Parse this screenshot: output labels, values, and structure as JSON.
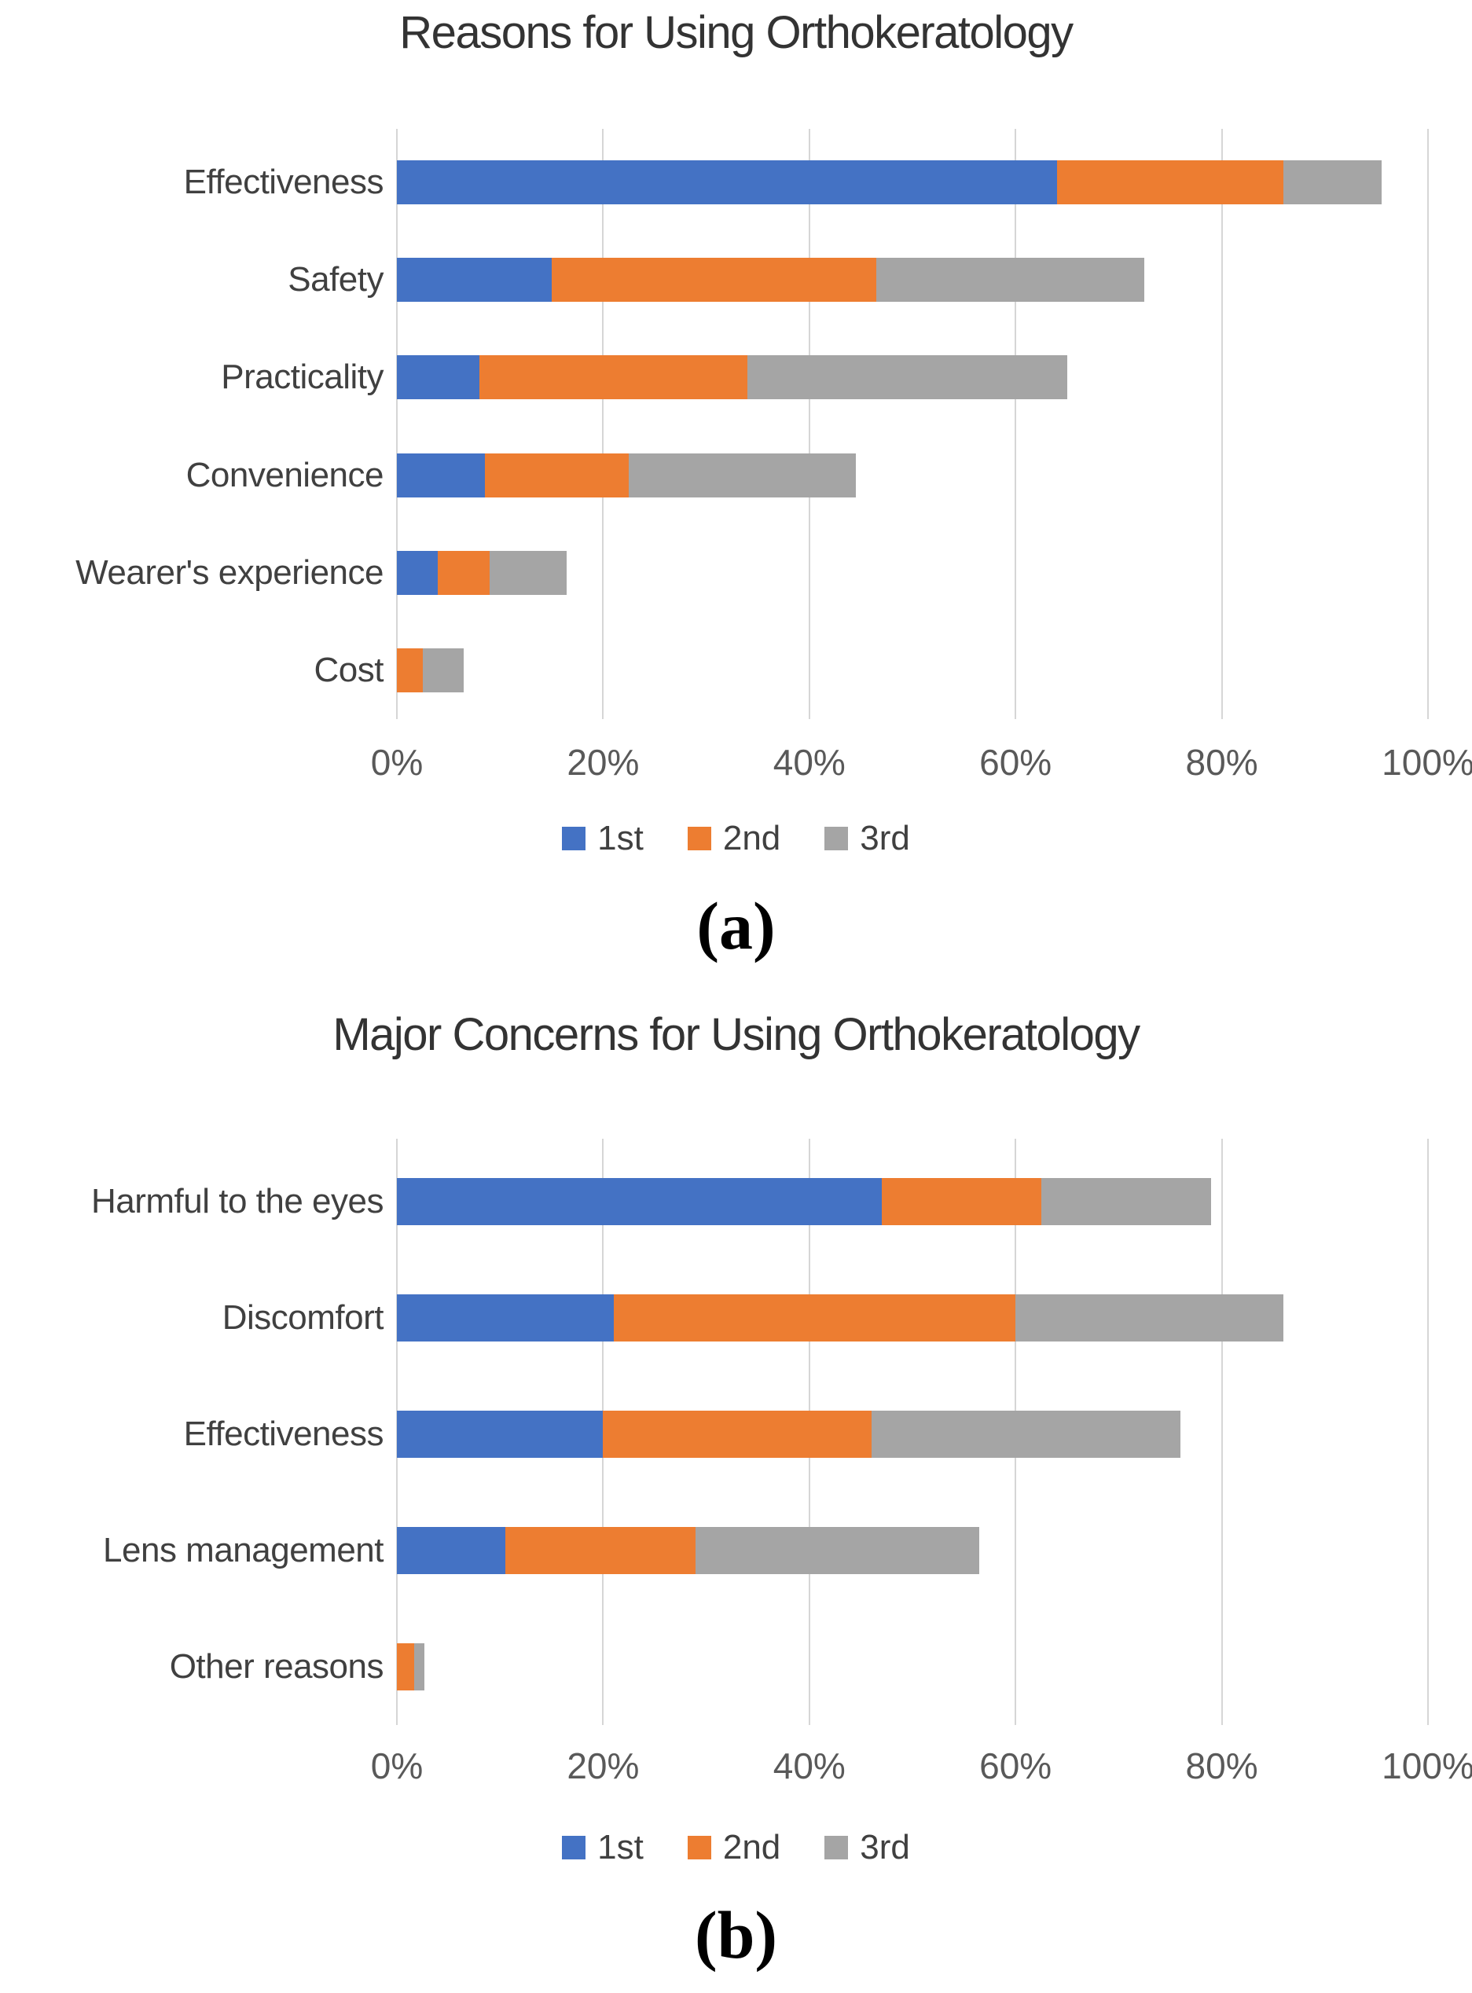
{
  "colors": {
    "series_1st": "#4472C4",
    "series_2nd": "#ED7D31",
    "series_3rd": "#A5A5A5",
    "gridline": "#D6D6D6",
    "title_text": "#333333",
    "label_text": "#404040",
    "tick_text": "#595959"
  },
  "chart_data": [
    {
      "type": "bar",
      "orientation": "horizontal",
      "stacked": true,
      "title": "Reasons for Using Orthokeratology",
      "caption": "(a)",
      "categories": [
        "Effectiveness",
        "Safety",
        "Practicality",
        "Convenience",
        "Wearer's experience",
        "Cost"
      ],
      "series": [
        {
          "name": "1st",
          "color": "#4472C4",
          "values": [
            64,
            15,
            8,
            8.5,
            4,
            0
          ]
        },
        {
          "name": "2nd",
          "color": "#ED7D31",
          "values": [
            22,
            31.5,
            26,
            14,
            5,
            2.5
          ]
        },
        {
          "name": "3rd",
          "color": "#A5A5A5",
          "values": [
            9.5,
            26,
            31,
            22,
            7.5,
            4
          ]
        }
      ],
      "x_ticks": [
        "0%",
        "20%",
        "40%",
        "60%",
        "80%",
        "100%"
      ],
      "xlim": [
        0,
        100
      ],
      "grid": true,
      "legend_position": "bottom"
    },
    {
      "type": "bar",
      "orientation": "horizontal",
      "stacked": true,
      "title": "Major Concerns for Using Orthokeratology",
      "caption": "(b)",
      "categories": [
        "Harmful to the eyes",
        "Discomfort",
        "Effectiveness",
        "Lens management",
        "Other reasons"
      ],
      "series": [
        {
          "name": "1st",
          "color": "#4472C4",
          "values": [
            47,
            21,
            20,
            10.5,
            0
          ]
        },
        {
          "name": "2nd",
          "color": "#ED7D31",
          "values": [
            15.5,
            39,
            26,
            18.5,
            1.7
          ]
        },
        {
          "name": "3rd",
          "color": "#A5A5A5",
          "values": [
            16.5,
            26,
            30,
            27.5,
            1
          ]
        }
      ],
      "x_ticks": [
        "0%",
        "20%",
        "40%",
        "60%",
        "80%",
        "100%"
      ],
      "xlim": [
        0,
        100
      ],
      "grid": true,
      "legend_position": "bottom"
    }
  ]
}
